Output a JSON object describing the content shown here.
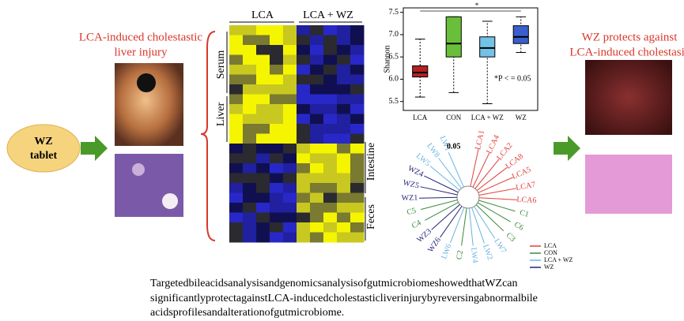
{
  "left": {
    "title": [
      "LCA-induced cholestastic",
      "liver injury"
    ],
    "pill": [
      "WZ",
      "tablet"
    ]
  },
  "heatmap": {
    "column_groups": [
      "LCA",
      "LCA + WZ"
    ],
    "row_groups_left": [
      "Serum",
      "Liver"
    ],
    "row_groups_right": [
      "Intestine",
      "Feces"
    ]
  },
  "boxplot": {
    "y_label": "Shannon",
    "categories": [
      "LCA",
      "CON",
      "LCA + WZ",
      "WZ"
    ],
    "colors": [
      "#b22222",
      "#6abf3a",
      "#73c2e8",
      "#3a5fcd"
    ],
    "min": [
      5.6,
      5.7,
      5.45,
      6.6
    ],
    "q1": [
      6.05,
      6.5,
      6.5,
      6.8
    ],
    "median": [
      6.15,
      6.8,
      6.7,
      6.95
    ],
    "q3": [
      6.3,
      7.4,
      6.95,
      7.2
    ],
    "max": [
      6.9,
      7.4,
      7.3,
      7.4
    ],
    "ylim": [
      5.3,
      7.6
    ],
    "yticks": [
      5.5,
      {
        "value": 6,
        "label": "6.0"
      },
      6.5,
      {
        "value": 7,
        "label": "7.0"
      },
      7.5
    ],
    "significance": "*",
    "annotation": "*P < = 0.05"
  },
  "tree": {
    "scale": "0.05",
    "leaves": [
      {
        "label": "LCA1",
        "color": "#e0403a"
      },
      {
        "label": "LCA4",
        "color": "#e0403a"
      },
      {
        "label": "LCA2",
        "color": "#e0403a"
      },
      {
        "label": "LCA8",
        "color": "#e0403a"
      },
      {
        "label": "LCA5",
        "color": "#e0403a"
      },
      {
        "label": "LCA7",
        "color": "#e0403a"
      },
      {
        "label": "LCA6",
        "color": "#e0403a"
      },
      {
        "label": "C1",
        "color": "#3a8a3a"
      },
      {
        "label": "C6",
        "color": "#3a8a3a"
      },
      {
        "label": "C3",
        "color": "#3a8a3a"
      },
      {
        "label": "LW7",
        "color": "#6ab4e0"
      },
      {
        "label": "LW2",
        "color": "#6ab4e0"
      },
      {
        "label": "LW4",
        "color": "#6ab4e0"
      },
      {
        "label": "C2",
        "color": "#3a8a3a"
      },
      {
        "label": "LW6",
        "color": "#6ab4e0"
      },
      {
        "label": "WZ6",
        "color": "#23237a"
      },
      {
        "label": "WZ3",
        "color": "#23237a"
      },
      {
        "label": "C4",
        "color": "#3a8a3a"
      },
      {
        "label": "C5",
        "color": "#3a8a3a"
      },
      {
        "label": "WZ1",
        "color": "#23237a"
      },
      {
        "label": "WZ5",
        "color": "#23237a"
      },
      {
        "label": "WZ4",
        "color": "#23237a"
      },
      {
        "label": "LW5",
        "color": "#6ab4e0"
      },
      {
        "label": "LW8",
        "color": "#6ab4e0"
      },
      {
        "label": "LW1",
        "color": "#6ab4e0"
      }
    ],
    "legend": [
      {
        "name": "LCA",
        "color": "#e0403a"
      },
      {
        "name": "CON",
        "color": "#3a8a3a"
      },
      {
        "name": "LCA + WZ",
        "color": "#6ab4e0"
      },
      {
        "name": "WZ",
        "color": "#23237a"
      }
    ]
  },
  "right": {
    "title": [
      "WZ protects against",
      "LCA-induced cholestasis"
    ]
  },
  "caption": [
    "TargetedbileacidsanalysisandgenomicsanalysisofgutmicrobiomeshowedthatWZcan",
    "significantlyprotectagainstLCA-inducedcholestasticliverinjurybyreversingabnormalbile",
    "acidsprofilesandalterationofgutmicrobiome."
  ]
}
